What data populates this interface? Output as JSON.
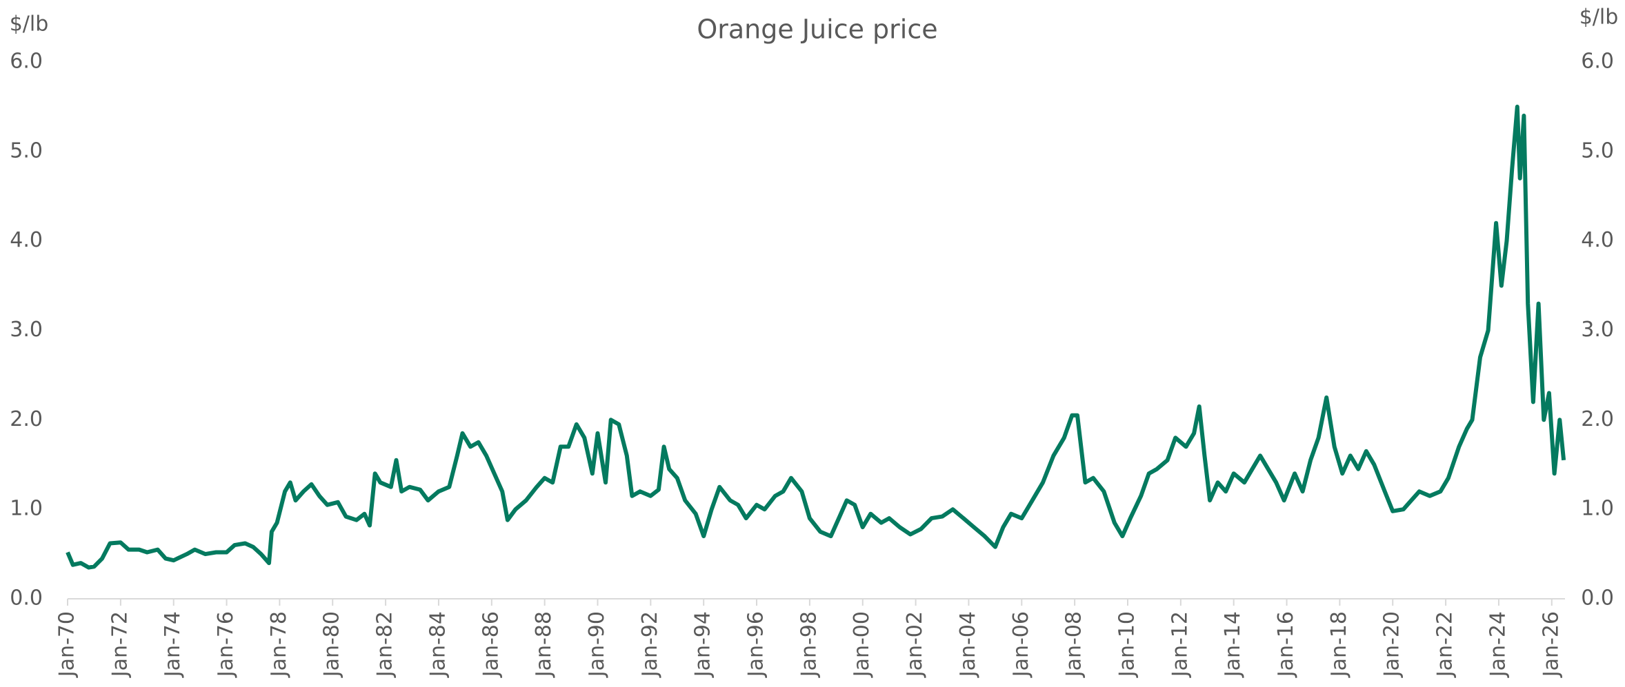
{
  "chart_data": {
    "type": "line",
    "title": "Orange Juice price",
    "y_label": "$/lb",
    "y2_label": "$/lb",
    "x": [
      1970.0,
      1970.2,
      1970.5,
      1970.8,
      1971.0,
      1971.3,
      1971.6,
      1972.0,
      1972.3,
      1972.7,
      1973.0,
      1973.4,
      1973.7,
      1974.0,
      1974.5,
      1974.8,
      1975.2,
      1975.6,
      1976.0,
      1976.3,
      1976.7,
      1977.0,
      1977.3,
      1977.6,
      1977.7,
      1977.9,
      1978.2,
      1978.4,
      1978.6,
      1978.9,
      1979.2,
      1979.5,
      1979.8,
      1980.2,
      1980.5,
      1980.9,
      1981.2,
      1981.4,
      1981.6,
      1981.8,
      1982.2,
      1982.4,
      1982.6,
      1982.9,
      1983.3,
      1983.6,
      1984.0,
      1984.4,
      1984.7,
      1984.9,
      1985.2,
      1985.5,
      1985.8,
      1986.1,
      1986.4,
      1986.6,
      1986.9,
      1987.3,
      1987.7,
      1988.0,
      1988.3,
      1988.6,
      1988.9,
      1989.2,
      1989.5,
      1989.8,
      1990.0,
      1990.3,
      1990.5,
      1990.8,
      1991.1,
      1991.3,
      1991.6,
      1992.0,
      1992.3,
      1992.5,
      1992.7,
      1993.0,
      1993.3,
      1993.7,
      1994.0,
      1994.3,
      1994.6,
      1995.0,
      1995.3,
      1995.6,
      1996.0,
      1996.3,
      1996.7,
      1997.0,
      1997.3,
      1997.7,
      1998.0,
      1998.4,
      1998.8,
      1999.1,
      1999.4,
      1999.7,
      2000.0,
      2000.3,
      2000.7,
      2001.0,
      2001.4,
      2001.8,
      2002.2,
      2002.6,
      2003.0,
      2003.4,
      2003.8,
      2004.2,
      2004.6,
      2005.0,
      2005.3,
      2005.6,
      2006.0,
      2006.4,
      2006.8,
      2007.2,
      2007.6,
      2007.9,
      2008.1,
      2008.4,
      2008.7,
      2009.1,
      2009.5,
      2009.8,
      2010.1,
      2010.5,
      2010.8,
      2011.1,
      2011.5,
      2011.8,
      2012.2,
      2012.5,
      2012.7,
      2012.9,
      2013.1,
      2013.4,
      2013.7,
      2014.0,
      2014.4,
      2014.7,
      2015.0,
      2015.3,
      2015.6,
      2015.9,
      2016.3,
      2016.6,
      2016.9,
      2017.2,
      2017.5,
      2017.8,
      2018.1,
      2018.4,
      2018.7,
      2019.0,
      2019.3,
      2019.7,
      2020.0,
      2020.4,
      2020.7,
      2021.0,
      2021.4,
      2021.8,
      2022.1,
      2022.5,
      2022.8,
      2023.0,
      2023.3,
      2023.6,
      2023.8,
      2023.9,
      2024.1,
      2024.3,
      2024.5,
      2024.7,
      2024.8,
      2024.95,
      2025.1,
      2025.3,
      2025.5,
      2025.7,
      2025.9,
      2026.1,
      2026.3,
      2026.45
    ],
    "series": [
      {
        "name": "Orange Juice price",
        "color": "#047a5f",
        "values": [
          0.52,
          0.38,
          0.4,
          0.35,
          0.36,
          0.45,
          0.62,
          0.63,
          0.55,
          0.55,
          0.52,
          0.55,
          0.45,
          0.43,
          0.5,
          0.55,
          0.5,
          0.52,
          0.52,
          0.6,
          0.62,
          0.58,
          0.5,
          0.4,
          0.75,
          0.85,
          1.2,
          1.3,
          1.1,
          1.2,
          1.28,
          1.15,
          1.05,
          1.08,
          0.92,
          0.88,
          0.95,
          0.82,
          1.4,
          1.3,
          1.25,
          1.55,
          1.2,
          1.25,
          1.22,
          1.1,
          1.2,
          1.25,
          1.6,
          1.85,
          1.7,
          1.75,
          1.6,
          1.4,
          1.2,
          0.88,
          1.0,
          1.1,
          1.25,
          1.35,
          1.3,
          1.7,
          1.7,
          1.95,
          1.8,
          1.4,
          1.85,
          1.3,
          2.0,
          1.95,
          1.6,
          1.15,
          1.2,
          1.15,
          1.22,
          1.7,
          1.45,
          1.35,
          1.1,
          0.95,
          0.7,
          1.0,
          1.25,
          1.1,
          1.05,
          0.9,
          1.05,
          1.0,
          1.15,
          1.2,
          1.35,
          1.2,
          0.9,
          0.75,
          0.7,
          0.9,
          1.1,
          1.05,
          0.8,
          0.95,
          0.85,
          0.9,
          0.8,
          0.72,
          0.78,
          0.9,
          0.92,
          1.0,
          0.9,
          0.8,
          0.7,
          0.58,
          0.8,
          0.95,
          0.9,
          1.1,
          1.3,
          1.6,
          1.8,
          2.05,
          2.05,
          1.3,
          1.35,
          1.2,
          0.85,
          0.7,
          0.9,
          1.15,
          1.4,
          1.45,
          1.55,
          1.8,
          1.7,
          1.85,
          2.15,
          1.6,
          1.1,
          1.3,
          1.2,
          1.4,
          1.3,
          1.45,
          1.6,
          1.45,
          1.3,
          1.1,
          1.4,
          1.2,
          1.55,
          1.8,
          2.25,
          1.7,
          1.4,
          1.6,
          1.45,
          1.65,
          1.5,
          1.2,
          0.98,
          1.0,
          1.1,
          1.2,
          1.15,
          1.2,
          1.35,
          1.7,
          1.9,
          2.0,
          2.7,
          3.0,
          3.8,
          4.2,
          3.5,
          4.0,
          4.8,
          5.5,
          4.7,
          5.4,
          3.3,
          2.2,
          3.3,
          2.0,
          2.3,
          1.4,
          2.0,
          1.55
        ]
      }
    ],
    "xlim": [
      1970,
      2026.5
    ],
    "xticks": [
      {
        "value": 1970,
        "label": "Jan-70"
      },
      {
        "value": 1972,
        "label": "Jan-72"
      },
      {
        "value": 1974,
        "label": "Jan-74"
      },
      {
        "value": 1976,
        "label": "Jan-76"
      },
      {
        "value": 1978,
        "label": "Jan-78"
      },
      {
        "value": 1980,
        "label": "Jan-80"
      },
      {
        "value": 1982,
        "label": "Jan-82"
      },
      {
        "value": 1984,
        "label": "Jan-84"
      },
      {
        "value": 1986,
        "label": "Jan-86"
      },
      {
        "value": 1988,
        "label": "Jan-88"
      },
      {
        "value": 1990,
        "label": "Jan-90"
      },
      {
        "value": 1992,
        "label": "Jan-92"
      },
      {
        "value": 1994,
        "label": "Jan-94"
      },
      {
        "value": 1996,
        "label": "Jan-96"
      },
      {
        "value": 1998,
        "label": "Jan-98"
      },
      {
        "value": 2000,
        "label": "Jan-00"
      },
      {
        "value": 2002,
        "label": "Jan-02"
      },
      {
        "value": 2004,
        "label": "Jan-04"
      },
      {
        "value": 2006,
        "label": "Jan-06"
      },
      {
        "value": 2008,
        "label": "Jan-08"
      },
      {
        "value": 2010,
        "label": "Jan-10"
      },
      {
        "value": 2012,
        "label": "Jan-12"
      },
      {
        "value": 2014,
        "label": "Jan-14"
      },
      {
        "value": 2016,
        "label": "Jan-16"
      },
      {
        "value": 2018,
        "label": "Jan-18"
      },
      {
        "value": 2020,
        "label": "Jan-20"
      },
      {
        "value": 2022,
        "label": "Jan-22"
      },
      {
        "value": 2024,
        "label": "Jan-24"
      },
      {
        "value": 2026,
        "label": "Jan-26"
      }
    ],
    "ylim": [
      0,
      6
    ],
    "yticks": [
      {
        "value": 0,
        "label": "0.0"
      },
      {
        "value": 1,
        "label": "1.0"
      },
      {
        "value": 2,
        "label": "2.0"
      },
      {
        "value": 3,
        "label": "3.0"
      },
      {
        "value": 4,
        "label": "4.0"
      },
      {
        "value": 5,
        "label": "5.0"
      },
      {
        "value": 6,
        "label": "6.0"
      }
    ],
    "y2lim": [
      0,
      6
    ],
    "y2ticks": [
      {
        "value": 0,
        "label": "0.0"
      },
      {
        "value": 1,
        "label": "1.0"
      },
      {
        "value": 2,
        "label": "2.0"
      },
      {
        "value": 3,
        "label": "3.0"
      },
      {
        "value": 4,
        "label": "4.0"
      },
      {
        "value": 5,
        "label": "5.0"
      },
      {
        "value": 6,
        "label": "6.0"
      }
    ],
    "grid": false
  }
}
